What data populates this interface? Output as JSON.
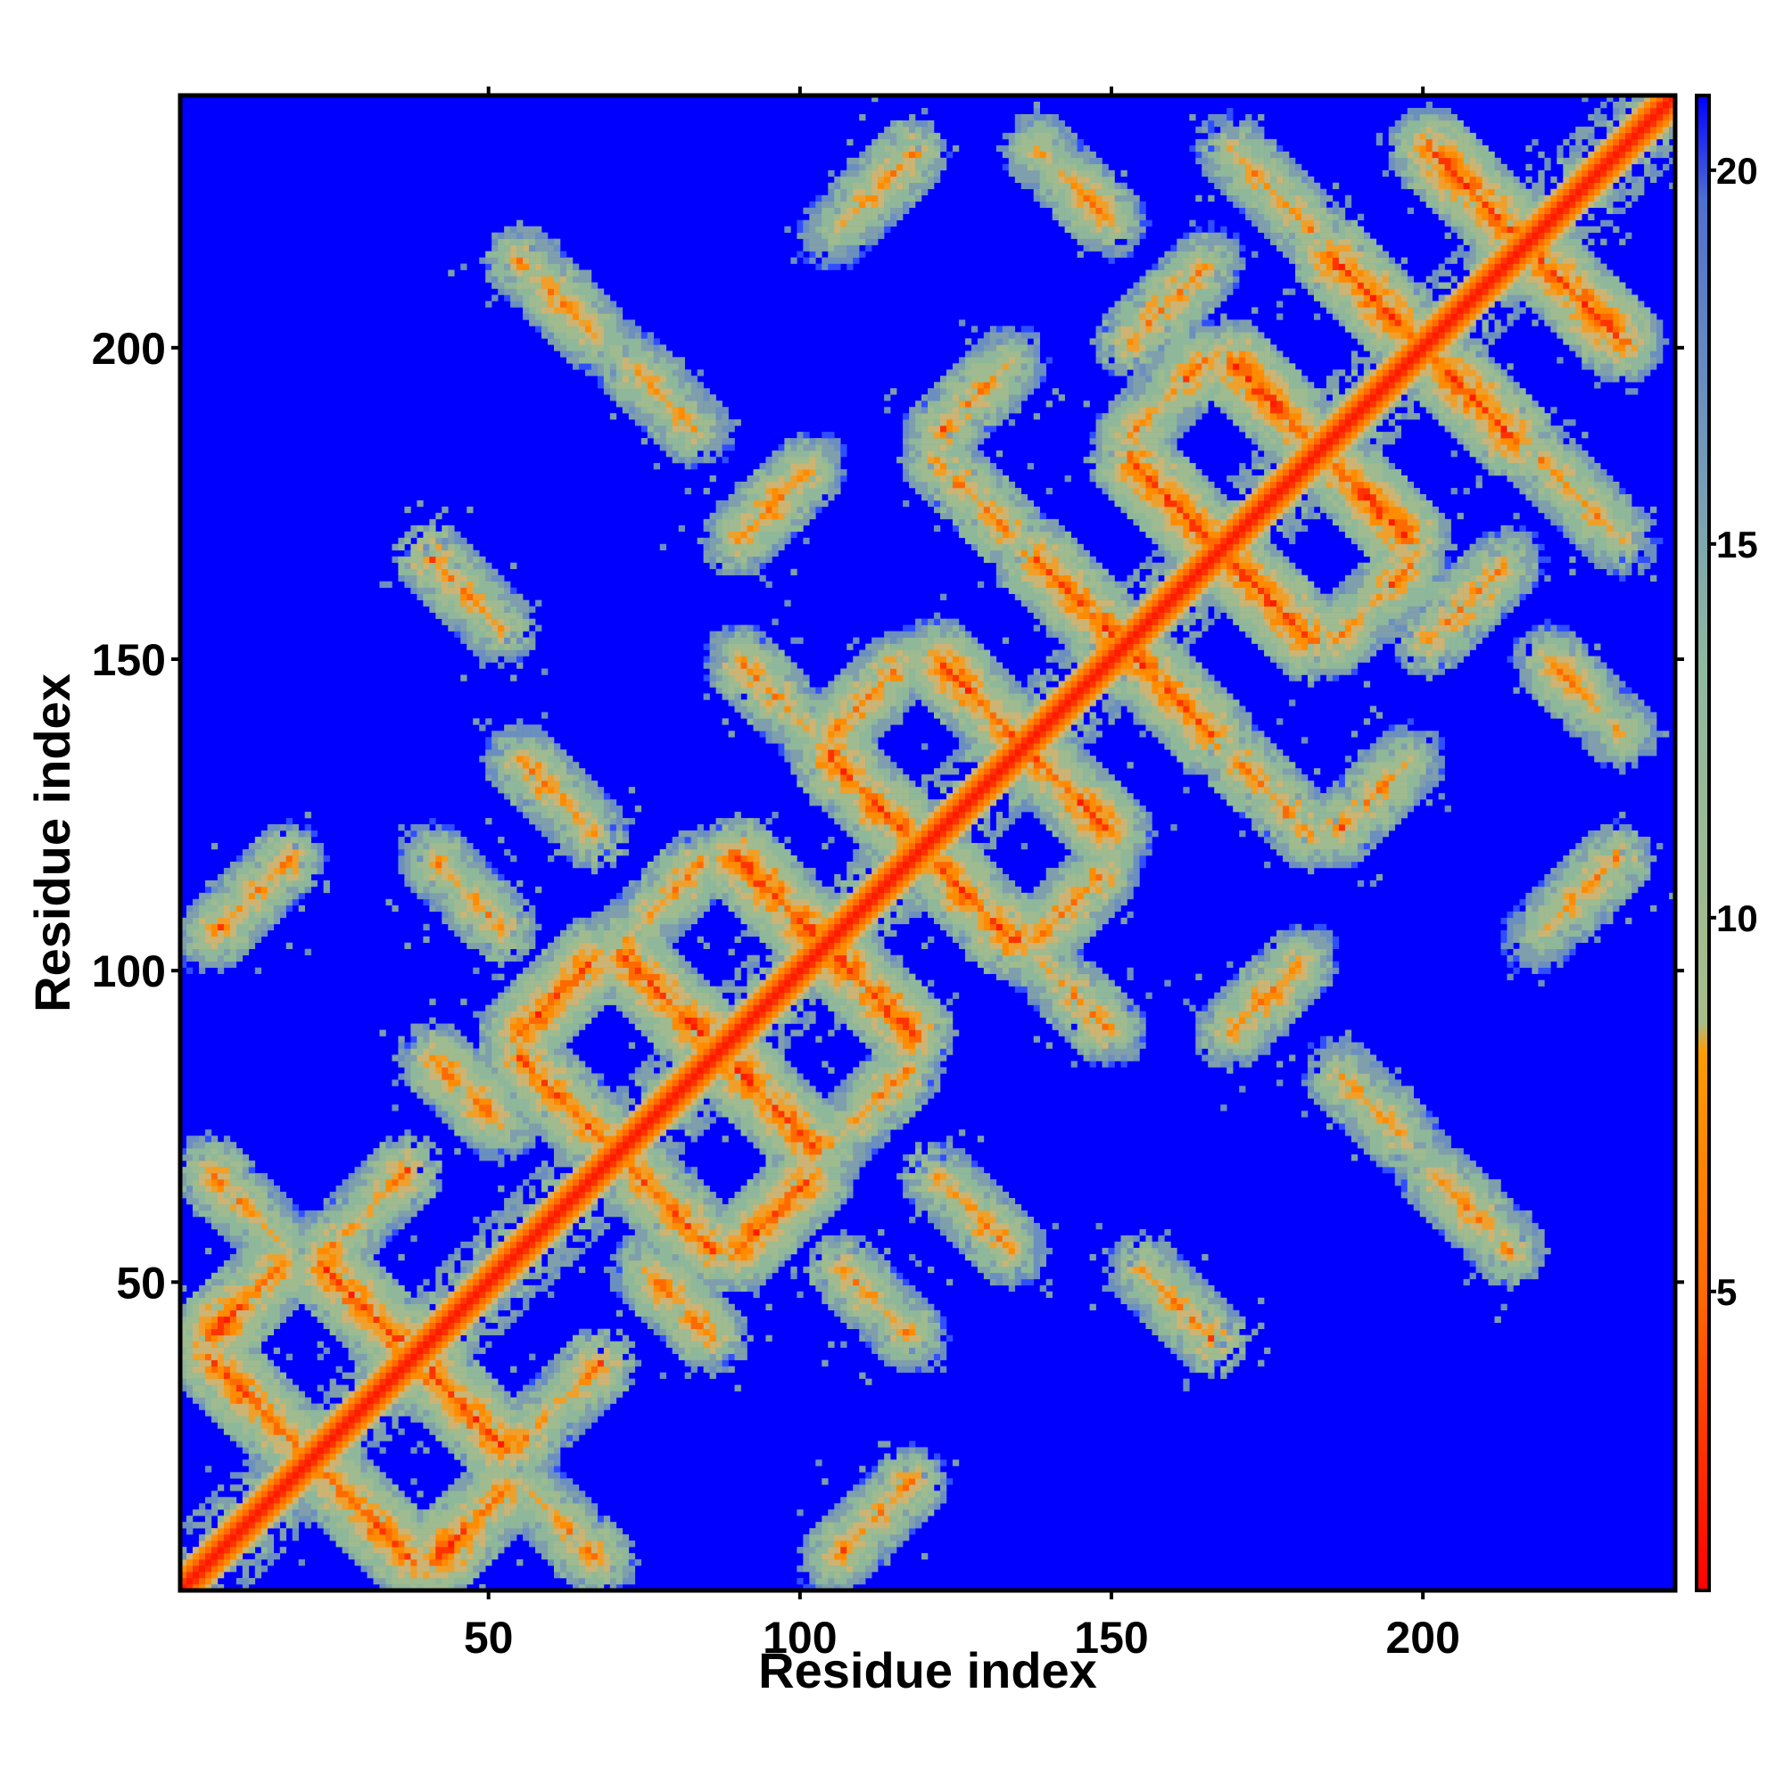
{
  "chart_data": {
    "type": "heatmap",
    "title": "",
    "xlabel": "Residue index",
    "ylabel": "Residue index",
    "n_residues": 240,
    "xlim": [
      1,
      240
    ],
    "ylim": [
      1,
      240
    ],
    "x_ticks": [
      50,
      100,
      150,
      200
    ],
    "y_ticks": [
      50,
      100,
      150,
      200
    ],
    "colorbar": {
      "range": [
        1,
        21
      ],
      "ticks": [
        5,
        10,
        15,
        20
      ],
      "colors": [
        "#ff0000",
        "#ff8c00",
        "#8fbc8f",
        "#4682b4",
        "#0000ff"
      ]
    },
    "background_value": 21,
    "diagonal_value": 1,
    "segments": [
      {
        "start": 5,
        "end": 20
      },
      {
        "start": 24,
        "end": 38
      },
      {
        "start": 41,
        "end": 52
      },
      {
        "start": 55,
        "end": 68
      },
      {
        "start": 72,
        "end": 86
      },
      {
        "start": 90,
        "end": 102
      },
      {
        "start": 105,
        "end": 118
      },
      {
        "start": 122,
        "end": 134
      },
      {
        "start": 138,
        "end": 150
      },
      {
        "start": 153,
        "end": 166
      },
      {
        "start": 169,
        "end": 182
      },
      {
        "start": 186,
        "end": 198
      },
      {
        "start": 201,
        "end": 214
      },
      {
        "start": 218,
        "end": 232
      }
    ],
    "strong_contacts": [
      {
        "seg_a": 0,
        "seg_b": 1,
        "orientation": "antiparallel"
      },
      {
        "seg_a": 1,
        "seg_b": 2,
        "orientation": "antiparallel"
      },
      {
        "seg_a": 0,
        "seg_b": 2,
        "orientation": "parallel"
      },
      {
        "seg_a": 3,
        "seg_b": 4,
        "orientation": "antiparallel"
      },
      {
        "seg_a": 4,
        "seg_b": 5,
        "orientation": "antiparallel"
      },
      {
        "seg_a": 3,
        "seg_b": 5,
        "orientation": "parallel"
      },
      {
        "seg_a": 6,
        "seg_b": 7,
        "orientation": "antiparallel"
      },
      {
        "seg_a": 5,
        "seg_b": 6,
        "orientation": "antiparallel"
      },
      {
        "seg_a": 8,
        "seg_b": 9,
        "orientation": "antiparallel"
      },
      {
        "seg_a": 7,
        "seg_b": 8,
        "orientation": "antiparallel"
      },
      {
        "seg_a": 10,
        "seg_b": 11,
        "orientation": "antiparallel"
      },
      {
        "seg_a": 11,
        "seg_b": 12,
        "orientation": "antiparallel"
      },
      {
        "seg_a": 12,
        "seg_b": 13,
        "orientation": "antiparallel"
      },
      {
        "seg_a": 9,
        "seg_b": 10,
        "orientation": "antiparallel"
      }
    ],
    "weak_contacts": [
      {
        "seg_a": 0,
        "seg_b": 3,
        "orientation": "antiparallel"
      },
      {
        "seg_a": 2,
        "seg_b": 4,
        "orientation": "antiparallel"
      },
      {
        "seg_a": 1,
        "seg_b": 3,
        "orientation": "parallel"
      },
      {
        "seg_a": 0,
        "seg_b": 6,
        "orientation": "parallel"
      },
      {
        "seg_a": 2,
        "seg_b": 6,
        "orientation": "antiparallel"
      },
      {
        "seg_a": 4,
        "seg_b": 6,
        "orientation": "parallel"
      },
      {
        "seg_a": 3,
        "seg_b": 7,
        "orientation": "antiparallel"
      },
      {
        "seg_a": 5,
        "seg_b": 8,
        "orientation": "antiparallel"
      },
      {
        "seg_a": 6,
        "seg_b": 8,
        "orientation": "parallel"
      },
      {
        "seg_a": 2,
        "seg_b": 9,
        "orientation": "antiparallel"
      },
      {
        "seg_a": 5,
        "seg_b": 10,
        "orientation": "parallel"
      },
      {
        "seg_a": 7,
        "seg_b": 10,
        "orientation": "antiparallel"
      },
      {
        "seg_a": 4,
        "seg_b": 11,
        "orientation": "antiparallel"
      },
      {
        "seg_a": 7,
        "seg_b": 11,
        "orientation": "parallel"
      },
      {
        "seg_a": 9,
        "seg_b": 12,
        "orientation": "parallel"
      },
      {
        "seg_a": 10,
        "seg_b": 13,
        "orientation": "antiparallel"
      },
      {
        "seg_a": 6,
        "seg_b": 13,
        "orientation": "parallel"
      },
      {
        "seg_a": 8,
        "seg_b": 13,
        "orientation": "antiparallel"
      },
      {
        "seg_a": 3,
        "seg_b": 12,
        "orientation": "antiparallel"
      },
      {
        "seg_a": 9,
        "seg_b": 11,
        "orientation": "parallel"
      }
    ]
  }
}
